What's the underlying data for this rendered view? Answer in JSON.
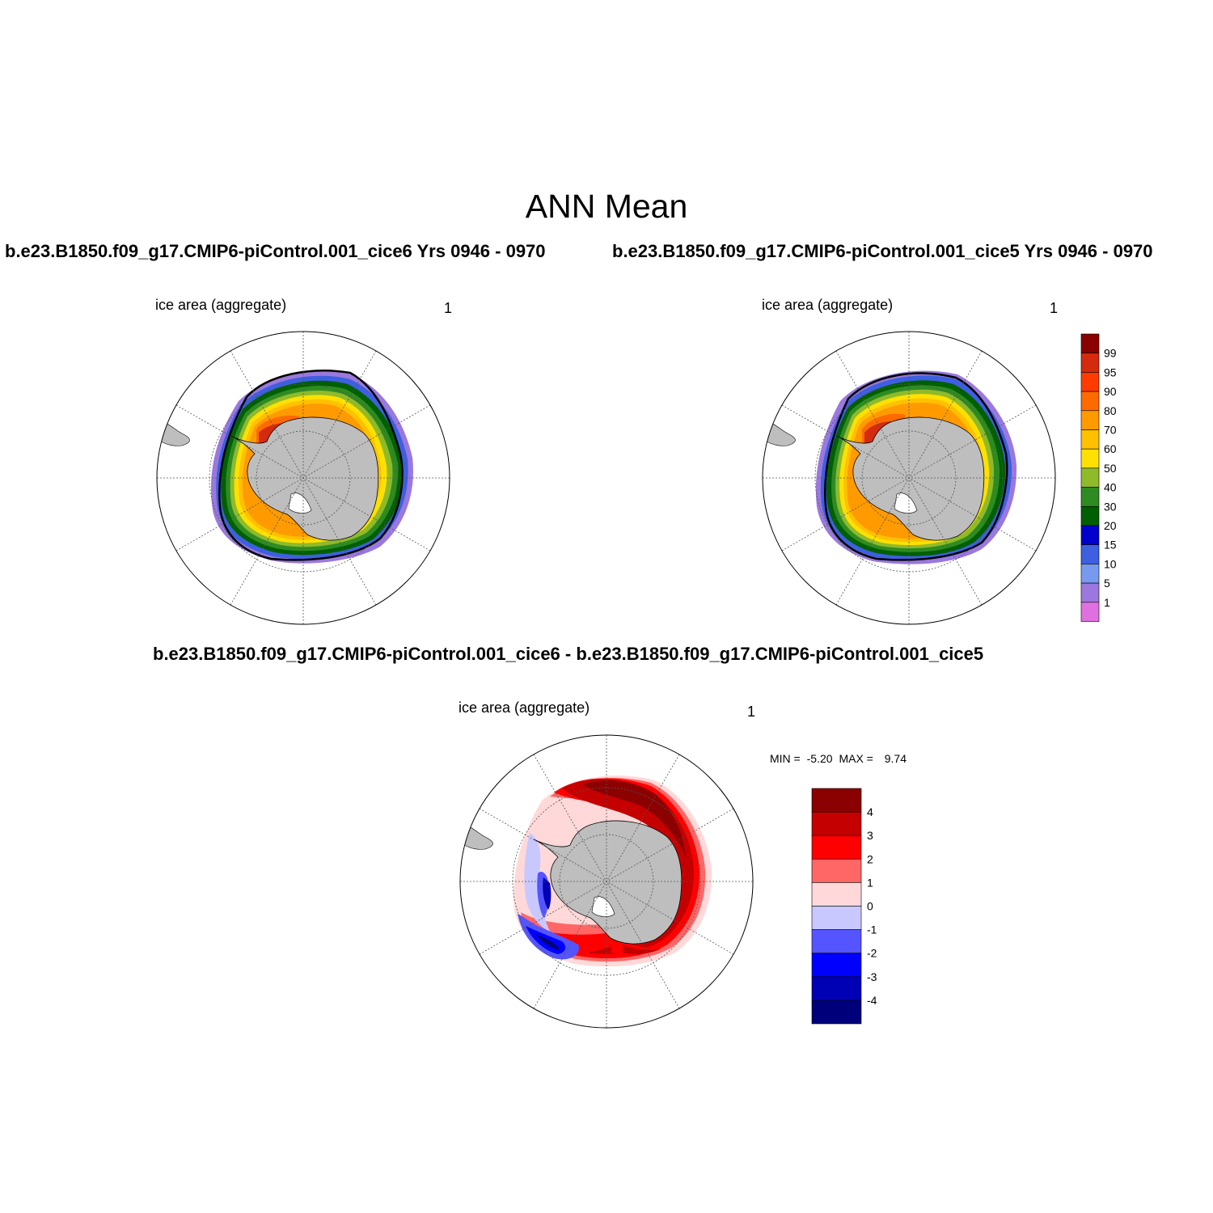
{
  "title": "ANN Mean",
  "panels": [
    {
      "title": "b.e23.B1850.f09_g17.CMIP6-piControl.001_cice6  Yrs 0946 - 0970",
      "variable": "ice area  (aggregate)",
      "units": "1"
    },
    {
      "title": "b.e23.B1850.f09_g17.CMIP6-piControl.001_cice5  Yrs 0946 - 0970",
      "variable": "ice area  (aggregate)",
      "units": "1"
    },
    {
      "title": "b.e23.B1850.f09_g17.CMIP6-piControl.001_cice6 - b.e23.B1850.f09_g17.CMIP6-piControl.001_cice5",
      "variable": "ice area  (aggregate)",
      "units": "1",
      "min_label": "MIN =",
      "min_value": "-5.20",
      "max_label": "MAX =",
      "max_value": "9.74"
    }
  ],
  "concentration_legend": {
    "labels": [
      "99",
      "95",
      "90",
      "80",
      "70",
      "60",
      "50",
      "40",
      "30",
      "20",
      "15",
      "10",
      "5",
      "1"
    ],
    "colors": [
      "#8b0000",
      "#d42a0e",
      "#ff3b00",
      "#ff6a00",
      "#ff9a00",
      "#ffc000",
      "#ffe000",
      "#8fba2a",
      "#2e8b22",
      "#005f00",
      "#0000cc",
      "#3d5fe0",
      "#7799ee",
      "#9a78dd",
      "#e070e0"
    ]
  },
  "difference_legend": {
    "labels": [
      "4",
      "3",
      "2",
      "1",
      "0",
      "-1",
      "-2",
      "-3",
      "-4"
    ],
    "colors": [
      "#8b0000",
      "#c40000",
      "#ff0000",
      "#ff6666",
      "#ffd9d9",
      "#c8c8ff",
      "#5555ff",
      "#0000ff",
      "#0000b4",
      "#00007a"
    ]
  },
  "map_colors": {
    "land": "#bebebe",
    "contour": "#000000"
  }
}
